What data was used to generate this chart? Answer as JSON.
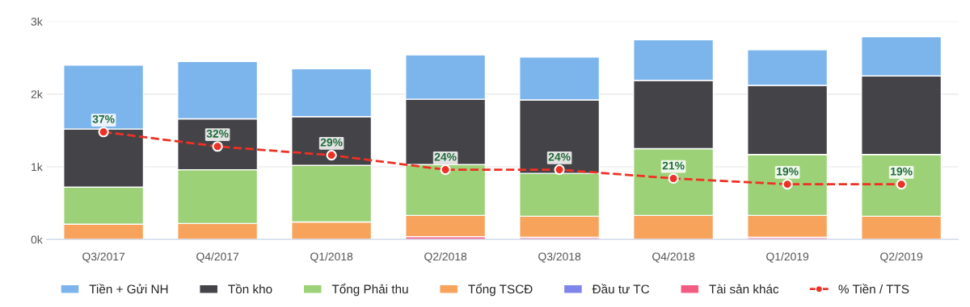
{
  "chart_data": {
    "type": "bar",
    "stacked": true,
    "categories": [
      "Q3/2017",
      "Q4/2017",
      "Q1/2018",
      "Q2/2018",
      "Q3/2018",
      "Q4/2018",
      "Q1/2019",
      "Q2/2019"
    ],
    "series": [
      {
        "name": "Tài sản khác",
        "color": "#f15c80",
        "values": [
          0,
          0,
          0,
          40,
          30,
          0,
          30,
          0
        ]
      },
      {
        "name": "Đầu tư TC",
        "color": "#8085e9",
        "values": [
          0,
          0,
          0,
          0,
          0,
          0,
          0,
          0
        ]
      },
      {
        "name": "Tổng TSCĐ",
        "color": "#f7a35c",
        "values": [
          210,
          220,
          240,
          290,
          290,
          330,
          300,
          320
        ]
      },
      {
        "name": "Tổng Phải thu",
        "color": "#9dd177",
        "values": [
          510,
          740,
          780,
          700,
          590,
          920,
          840,
          850
        ]
      },
      {
        "name": "Tồn kho",
        "color": "#434348",
        "values": [
          800,
          700,
          670,
          900,
          1010,
          940,
          950,
          1080
        ]
      },
      {
        "name": "Tiền + Gửi NH",
        "color": "#7cb5ec",
        "values": [
          880,
          790,
          660,
          610,
          590,
          560,
          490,
          540
        ]
      },
      {
        "name": "% Tiền / TTS",
        "type": "line",
        "axis": "y2",
        "color": "#ee3124",
        "marker": "circle",
        "line_style": "dashed",
        "values": [
          37,
          32,
          29,
          24,
          24,
          21,
          19,
          19
        ],
        "value_labels": [
          "37%",
          "32%",
          "29%",
          "24%",
          "24%",
          "21%",
          "19%",
          "19%"
        ]
      }
    ],
    "ylim": [
      0,
      3000
    ],
    "yticks": [
      {
        "value": 0,
        "label": "0k"
      },
      {
        "value": 1000,
        "label": "1k"
      },
      {
        "value": 2000,
        "label": "2k"
      },
      {
        "value": 3000,
        "label": "3k"
      }
    ],
    "y2lim": [
      0,
      75
    ],
    "grid": "y",
    "legend": "bottom"
  }
}
